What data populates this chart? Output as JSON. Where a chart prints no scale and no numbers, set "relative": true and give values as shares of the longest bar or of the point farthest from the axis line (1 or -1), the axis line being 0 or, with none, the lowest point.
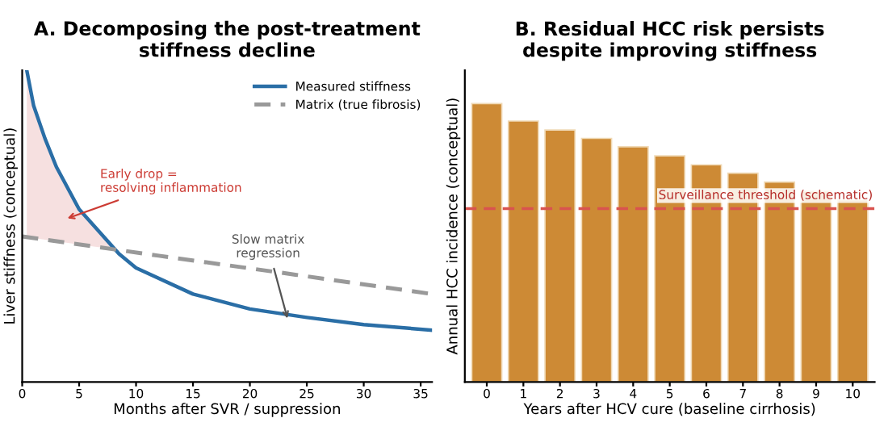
{
  "chart_data": [
    {
      "type": "line",
      "title": "A. Decomposing the post-treatment\nstiffness decline",
      "xlabel": "Months after SVR / suppression",
      "ylabel": "Liver stiffness (conceptual)",
      "relative": true,
      "xlim": [
        0,
        36
      ],
      "xticks": [
        0,
        5,
        10,
        15,
        20,
        25,
        30,
        35
      ],
      "legend": "top right",
      "grid": false,
      "series": [
        {
          "type": "area",
          "color": "#f2d3d3",
          "x": [
            0.4,
            1,
            2,
            3,
            5,
            8.5
          ],
          "values": [
            1.0,
            0.887,
            0.781,
            0.69,
            0.554,
            0.411
          ]
        },
        {
          "name": "Measured stiffness",
          "color": "#2a6ea6",
          "line_style": "solid",
          "x": [
            0.4,
            1,
            2,
            3,
            5,
            8.5,
            10,
            15,
            20,
            25,
            30,
            36
          ],
          "values": [
            1.0,
            0.887,
            0.781,
            0.69,
            0.554,
            0.411,
            0.366,
            0.282,
            0.234,
            0.207,
            0.184,
            0.166
          ]
        },
        {
          "name": "Matrix (true fibrosis)",
          "color": "#999999",
          "line_style": "dashed",
          "x": [
            0,
            12,
            24,
            36
          ],
          "values": [
            0.467,
            0.405,
            0.344,
            0.282
          ]
        }
      ],
      "annotations": [
        "Early drop =\nresolving inflammation",
        "Slow matrix\nregression"
      ]
    },
    {
      "type": "bar",
      "title": "B. Residual HCC risk persists\ndespite improving stiffness",
      "xlabel": "Years after HCV cure (baseline cirrhosis)",
      "ylabel": "Annual HCC incidence (conceptual)",
      "relative": true,
      "grid": false,
      "categories": [
        "0",
        "1",
        "2",
        "3",
        "4",
        "5",
        "6",
        "7",
        "8",
        "9",
        "10"
      ],
      "values": [
        1.0,
        0.9375,
        0.905,
        0.875,
        0.845,
        0.8125,
        0.78,
        0.75,
        0.718,
        0.686,
        0.654
      ],
      "color": "#cd8a35",
      "ref_lines": [
        {
          "axis": "y",
          "value": 0.623,
          "label": "Surveillance threshold (schematic)",
          "color": "#d9534f",
          "line_style": "dashed"
        }
      ]
    }
  ]
}
